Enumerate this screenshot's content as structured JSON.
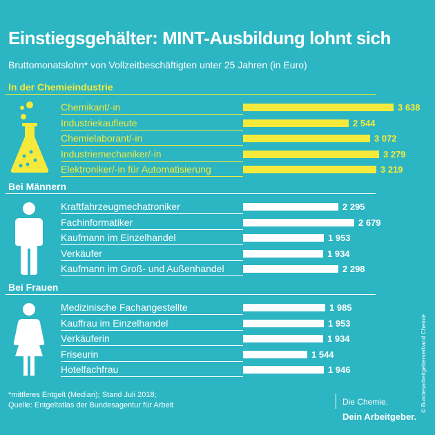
{
  "title": "Einstiegsgehälter: MINT-Ausbildung lohnt sich",
  "subtitle": "Bruttomonatslohn* von Vollzeitbeschäftigten unter 25 Jahren (in Euro)",
  "colors": {
    "background": "#2cb5c3",
    "yellow": "#f5ea3c",
    "white": "#ffffff"
  },
  "chart_data": [
    {
      "type": "bar",
      "orientation": "horizontal",
      "title": "In der Chemieindustrie",
      "icon": "flask-icon",
      "color": "#f5ea3c",
      "categories": [
        "Chemikant/-in",
        "Industriekaufleute",
        "Chemielaborant/-in",
        "Industriemechaniker/-in",
        "Elektroniker/-in für Automatisierung"
      ],
      "values": [
        3638,
        2544,
        3072,
        3279,
        3219
      ],
      "value_labels": [
        "3 638",
        "2 544",
        "3 072",
        "3 279",
        "3 219"
      ]
    },
    {
      "type": "bar",
      "orientation": "horizontal",
      "title": "Bei Männern",
      "icon": "man-icon",
      "color": "#ffffff",
      "categories": [
        "Kraftfahrzeugmechatroniker",
        "Fachinformatiker",
        "Kaufmann im Einzelhandel",
        "Verkäufer",
        "Kaufmann im Groß- und Außenhandel"
      ],
      "values": [
        2295,
        2679,
        1953,
        1934,
        2298
      ],
      "value_labels": [
        "2 295",
        "2 679",
        "1 953",
        "1 934",
        "2 298"
      ]
    },
    {
      "type": "bar",
      "orientation": "horizontal",
      "title": "Bei Frauen",
      "icon": "woman-icon",
      "color": "#ffffff",
      "categories": [
        "Medizinische Fachangestellte",
        "Kauffrau im Einzelhandel",
        "Verkäuferin",
        "Friseurin",
        "Hotelfachfrau"
      ],
      "values": [
        1985,
        1953,
        1934,
        1544,
        1946
      ],
      "value_labels": [
        "1 985",
        "1 953",
        "1 934",
        "1 544",
        "1 946"
      ]
    }
  ],
  "footnote": {
    "line1": "*mittleres Entgelt (Median); Stand Juli 2018;",
    "line2": "Quelle: Entgeltatlas der Bundesagentur für Arbeit"
  },
  "copyright": "© Bundesarbeitgeberverband Chemie",
  "logo": {
    "line1": "Die Chemie.",
    "line2": "Dein Arbeitgeber."
  }
}
